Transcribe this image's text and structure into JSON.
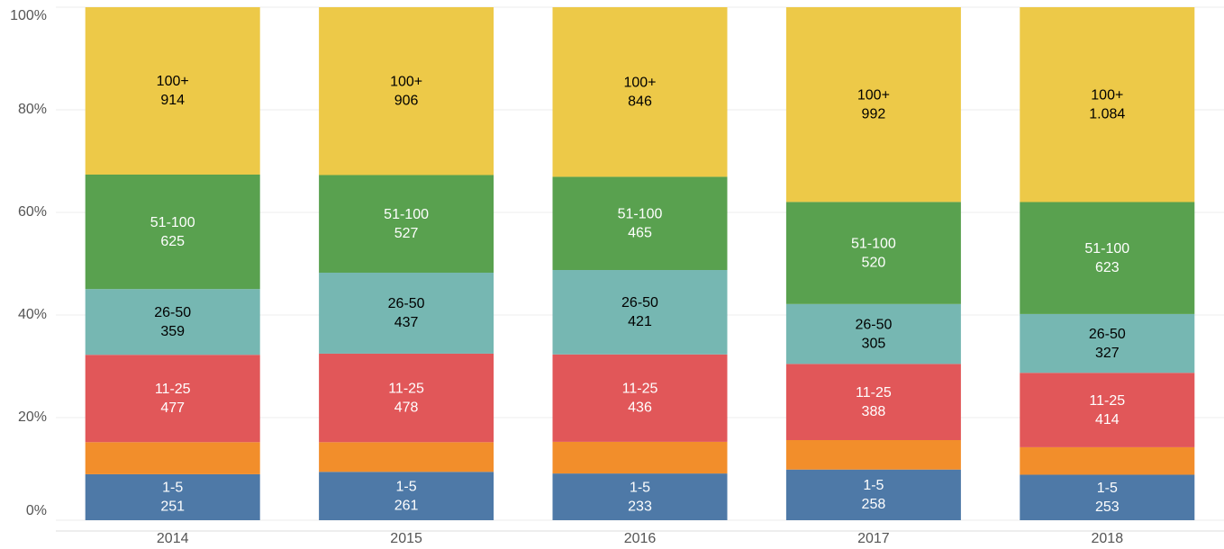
{
  "chart_data": {
    "type": "stacked_bar_percent",
    "categories": [
      "2014",
      "2015",
      "2016",
      "2017",
      "2018"
    ],
    "series": [
      {
        "name": "1-5",
        "color": "#4e79a7",
        "label_color": "#ffffff",
        "values": [
          251,
          261,
          233,
          258,
          253
        ]
      },
      {
        "name": null,
        "color": "#f28e2b",
        "values": [
          175,
          160,
          158,
          150,
          153
        ]
      },
      {
        "name": "11-25",
        "color": "#e15759",
        "label_color": "#ffffff",
        "values": [
          477,
          478,
          436,
          388,
          414
        ]
      },
      {
        "name": "26-50",
        "color": "#76b7b2",
        "label_color": "#000000",
        "values": [
          359,
          437,
          421,
          305,
          327
        ]
      },
      {
        "name": "51-100",
        "color": "#59a14f",
        "label_color": "#ffffff",
        "values": [
          625,
          527,
          465,
          520,
          623
        ]
      },
      {
        "name": "100+",
        "color": "#edc948",
        "label_color": "#000000",
        "values": [
          914,
          906,
          846,
          992,
          1084
        ],
        "value_labels": [
          "914",
          "906",
          "846",
          "992",
          "1.084"
        ]
      }
    ],
    "ylim": [
      0,
      100
    ],
    "yticks": [
      {
        "value": 0,
        "label": "0%"
      },
      {
        "value": 20,
        "label": "20%"
      },
      {
        "value": 40,
        "label": "40%"
      },
      {
        "value": 60,
        "label": "60%"
      },
      {
        "value": 80,
        "label": "80%"
      },
      {
        "value": 100,
        "label": "100%"
      }
    ],
    "grid": true
  }
}
